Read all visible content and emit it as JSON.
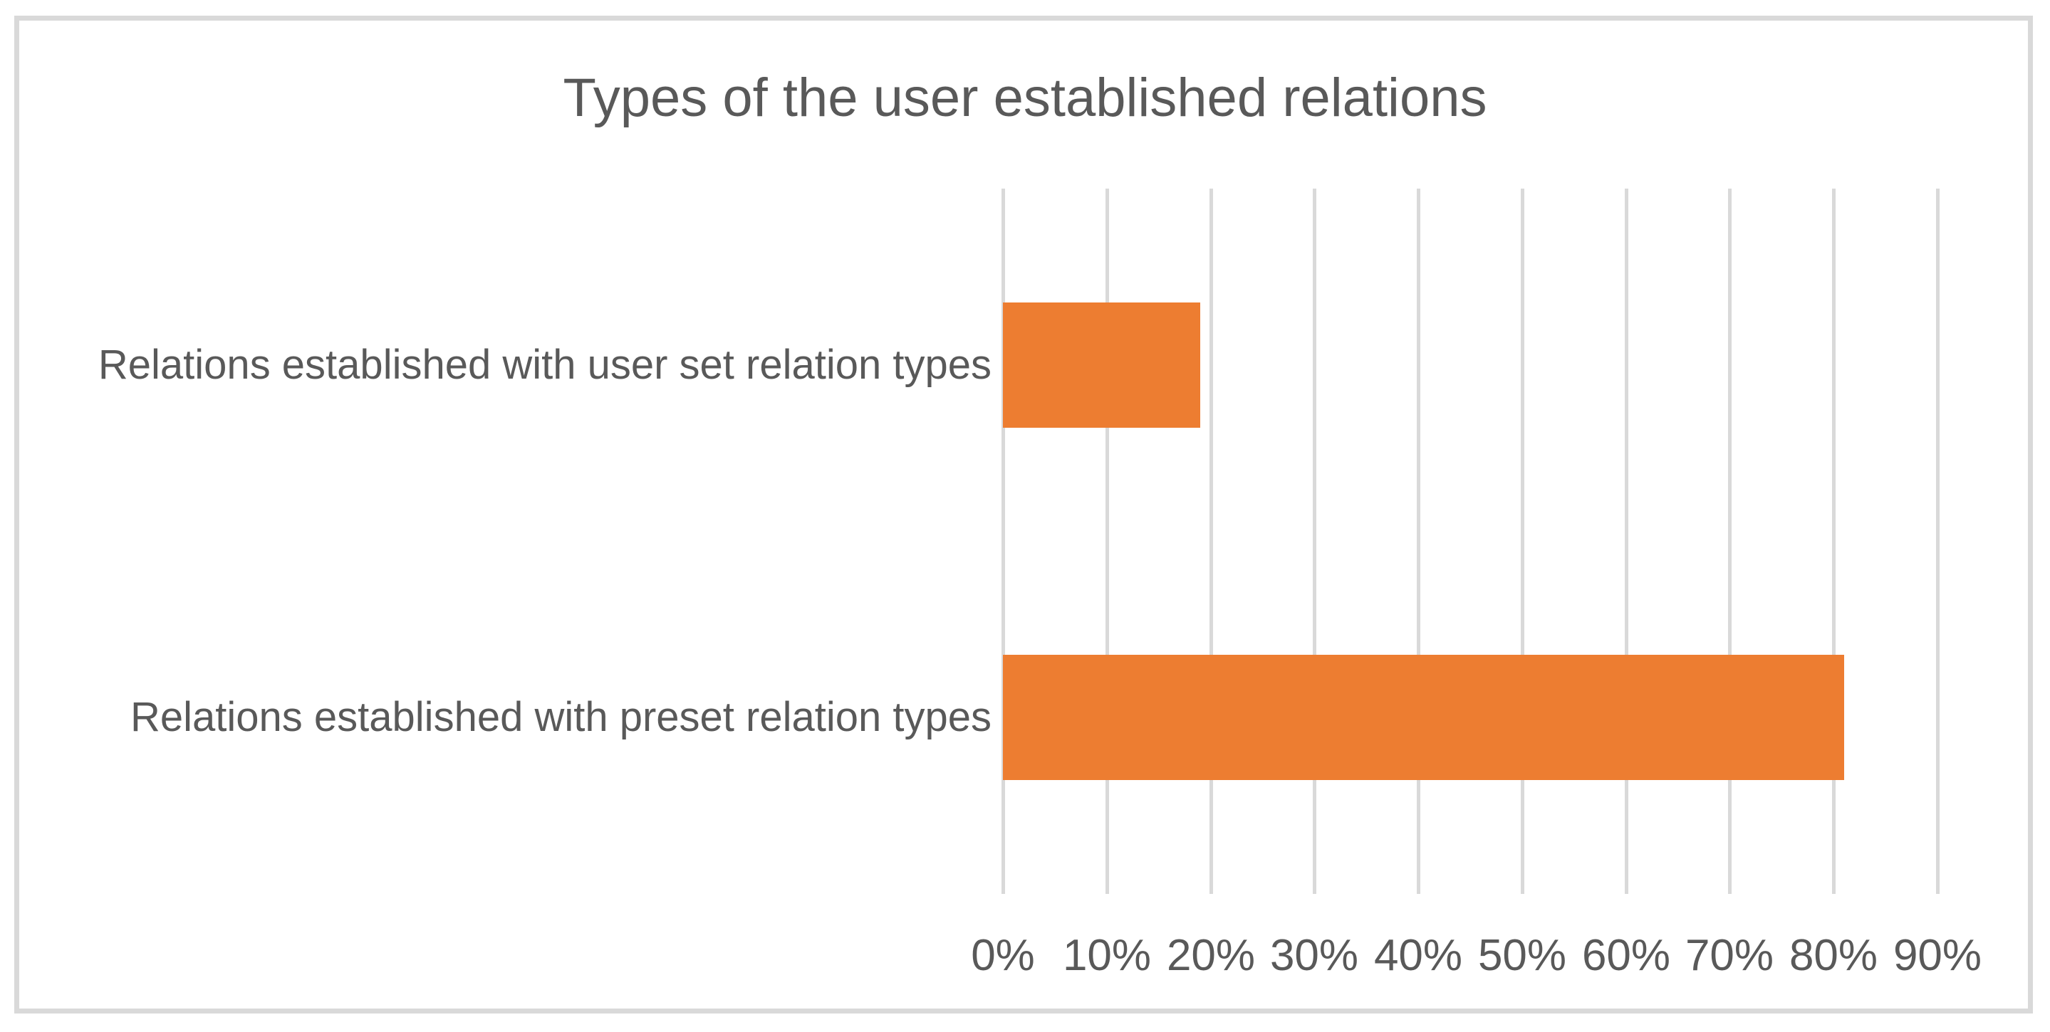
{
  "figure": {
    "background": "#FFFFFF",
    "border_color": "#D9D9D9"
  },
  "chart_data": {
    "type": "bar",
    "orientation": "horizontal",
    "title": "Types of the user established relations",
    "categories": [
      "Relations established with user set relation types",
      "Relations established with preset relation types"
    ],
    "values": [
      19,
      81
    ],
    "value_unit": "%",
    "xlabel": "",
    "ylabel": "",
    "xlim": [
      0,
      90
    ],
    "x_ticks": [
      "0%",
      "10%",
      "20%",
      "30%",
      "40%",
      "50%",
      "60%",
      "70%",
      "80%",
      "90%"
    ],
    "grid": "vertical-only",
    "legend": "none",
    "data_labels": "none",
    "bar_color": "#ED7D31",
    "gridline_color": "#D9D9D9",
    "text_color": "#595959"
  }
}
